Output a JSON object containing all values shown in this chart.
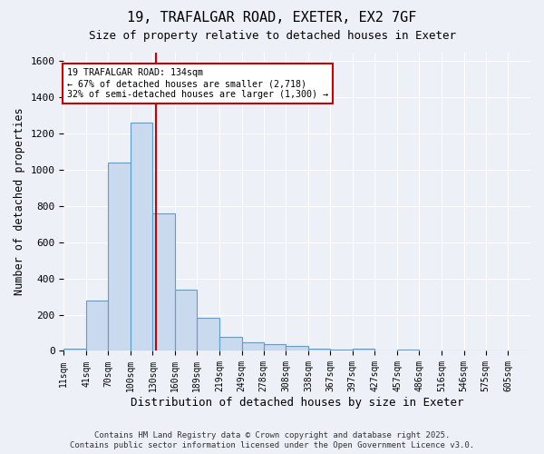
{
  "title1": "19, TRAFALGAR ROAD, EXETER, EX2 7GF",
  "title2": "Size of property relative to detached houses in Exeter",
  "xlabel": "Distribution of detached houses by size in Exeter",
  "ylabel": "Number of detached properties",
  "bin_labels": [
    "11sqm",
    "41sqm",
    "70sqm",
    "100sqm",
    "130sqm",
    "160sqm",
    "189sqm",
    "219sqm",
    "249sqm",
    "278sqm",
    "308sqm",
    "338sqm",
    "367sqm",
    "397sqm",
    "427sqm",
    "457sqm",
    "486sqm",
    "516sqm",
    "546sqm",
    "575sqm",
    "605sqm"
  ],
  "bin_edges": [
    11,
    41,
    70,
    100,
    130,
    160,
    189,
    219,
    249,
    278,
    308,
    338,
    367,
    397,
    427,
    457,
    486,
    516,
    546,
    575,
    605,
    635
  ],
  "bar_heights": [
    10,
    280,
    1040,
    1260,
    760,
    340,
    185,
    80,
    48,
    38,
    25,
    12,
    8,
    10,
    2,
    5,
    0,
    0,
    0,
    0,
    0
  ],
  "bar_color": "#c9d9ee",
  "bar_edge_color": "#5a9fd4",
  "property_size": 134,
  "red_line_color": "#cc0000",
  "annotation_line1": "19 TRAFALGAR ROAD: 134sqm",
  "annotation_line2": "← 67% of detached houses are smaller (2,718)",
  "annotation_line3": "32% of semi-detached houses are larger (1,300) →",
  "annotation_box_color": "#ffffff",
  "annotation_box_edge": "#cc0000",
  "ylim": [
    0,
    1650
  ],
  "yticks": [
    0,
    200,
    400,
    600,
    800,
    1000,
    1200,
    1400,
    1600
  ],
  "background_color": "#edf1f7",
  "grid_color": "#ffffff",
  "footer1": "Contains HM Land Registry data © Crown copyright and database right 2025.",
  "footer2": "Contains public sector information licensed under the Open Government Licence v3.0."
}
